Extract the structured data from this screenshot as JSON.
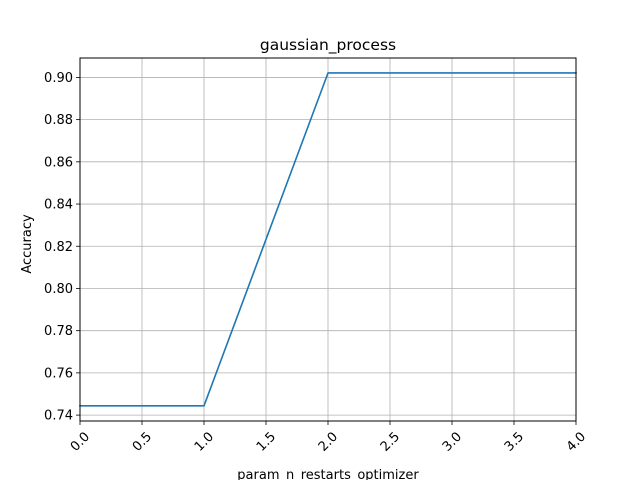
{
  "chart_data": {
    "type": "line",
    "title": "gaussian_process",
    "xlabel": "param_n_restarts_optimizer",
    "ylabel": "Accuracy",
    "xlim": [
      0,
      4
    ],
    "ylim": [
      0.7372,
      0.9092
    ],
    "xticks": [
      0.0,
      0.5,
      1.0,
      1.5,
      2.0,
      2.5,
      3.0,
      3.5,
      4.0
    ],
    "xtick_labels": [
      "0.0",
      "0.5",
      "1.0",
      "1.5",
      "2.0",
      "2.5",
      "3.0",
      "3.5",
      "4.0"
    ],
    "yticks": [
      0.74,
      0.76,
      0.78,
      0.8,
      0.82,
      0.84,
      0.86,
      0.88,
      0.9
    ],
    "ytick_labels": [
      "0.74",
      "0.76",
      "0.78",
      "0.80",
      "0.82",
      "0.84",
      "0.86",
      "0.88",
      "0.90"
    ],
    "grid": true,
    "legend": "none",
    "series": [
      {
        "x": [
          0,
          1,
          2,
          3,
          4
        ],
        "y": [
          0.7444,
          0.7444,
          0.9021,
          0.9021,
          0.9021
        ],
        "color": "#1f77b4"
      }
    ]
  }
}
